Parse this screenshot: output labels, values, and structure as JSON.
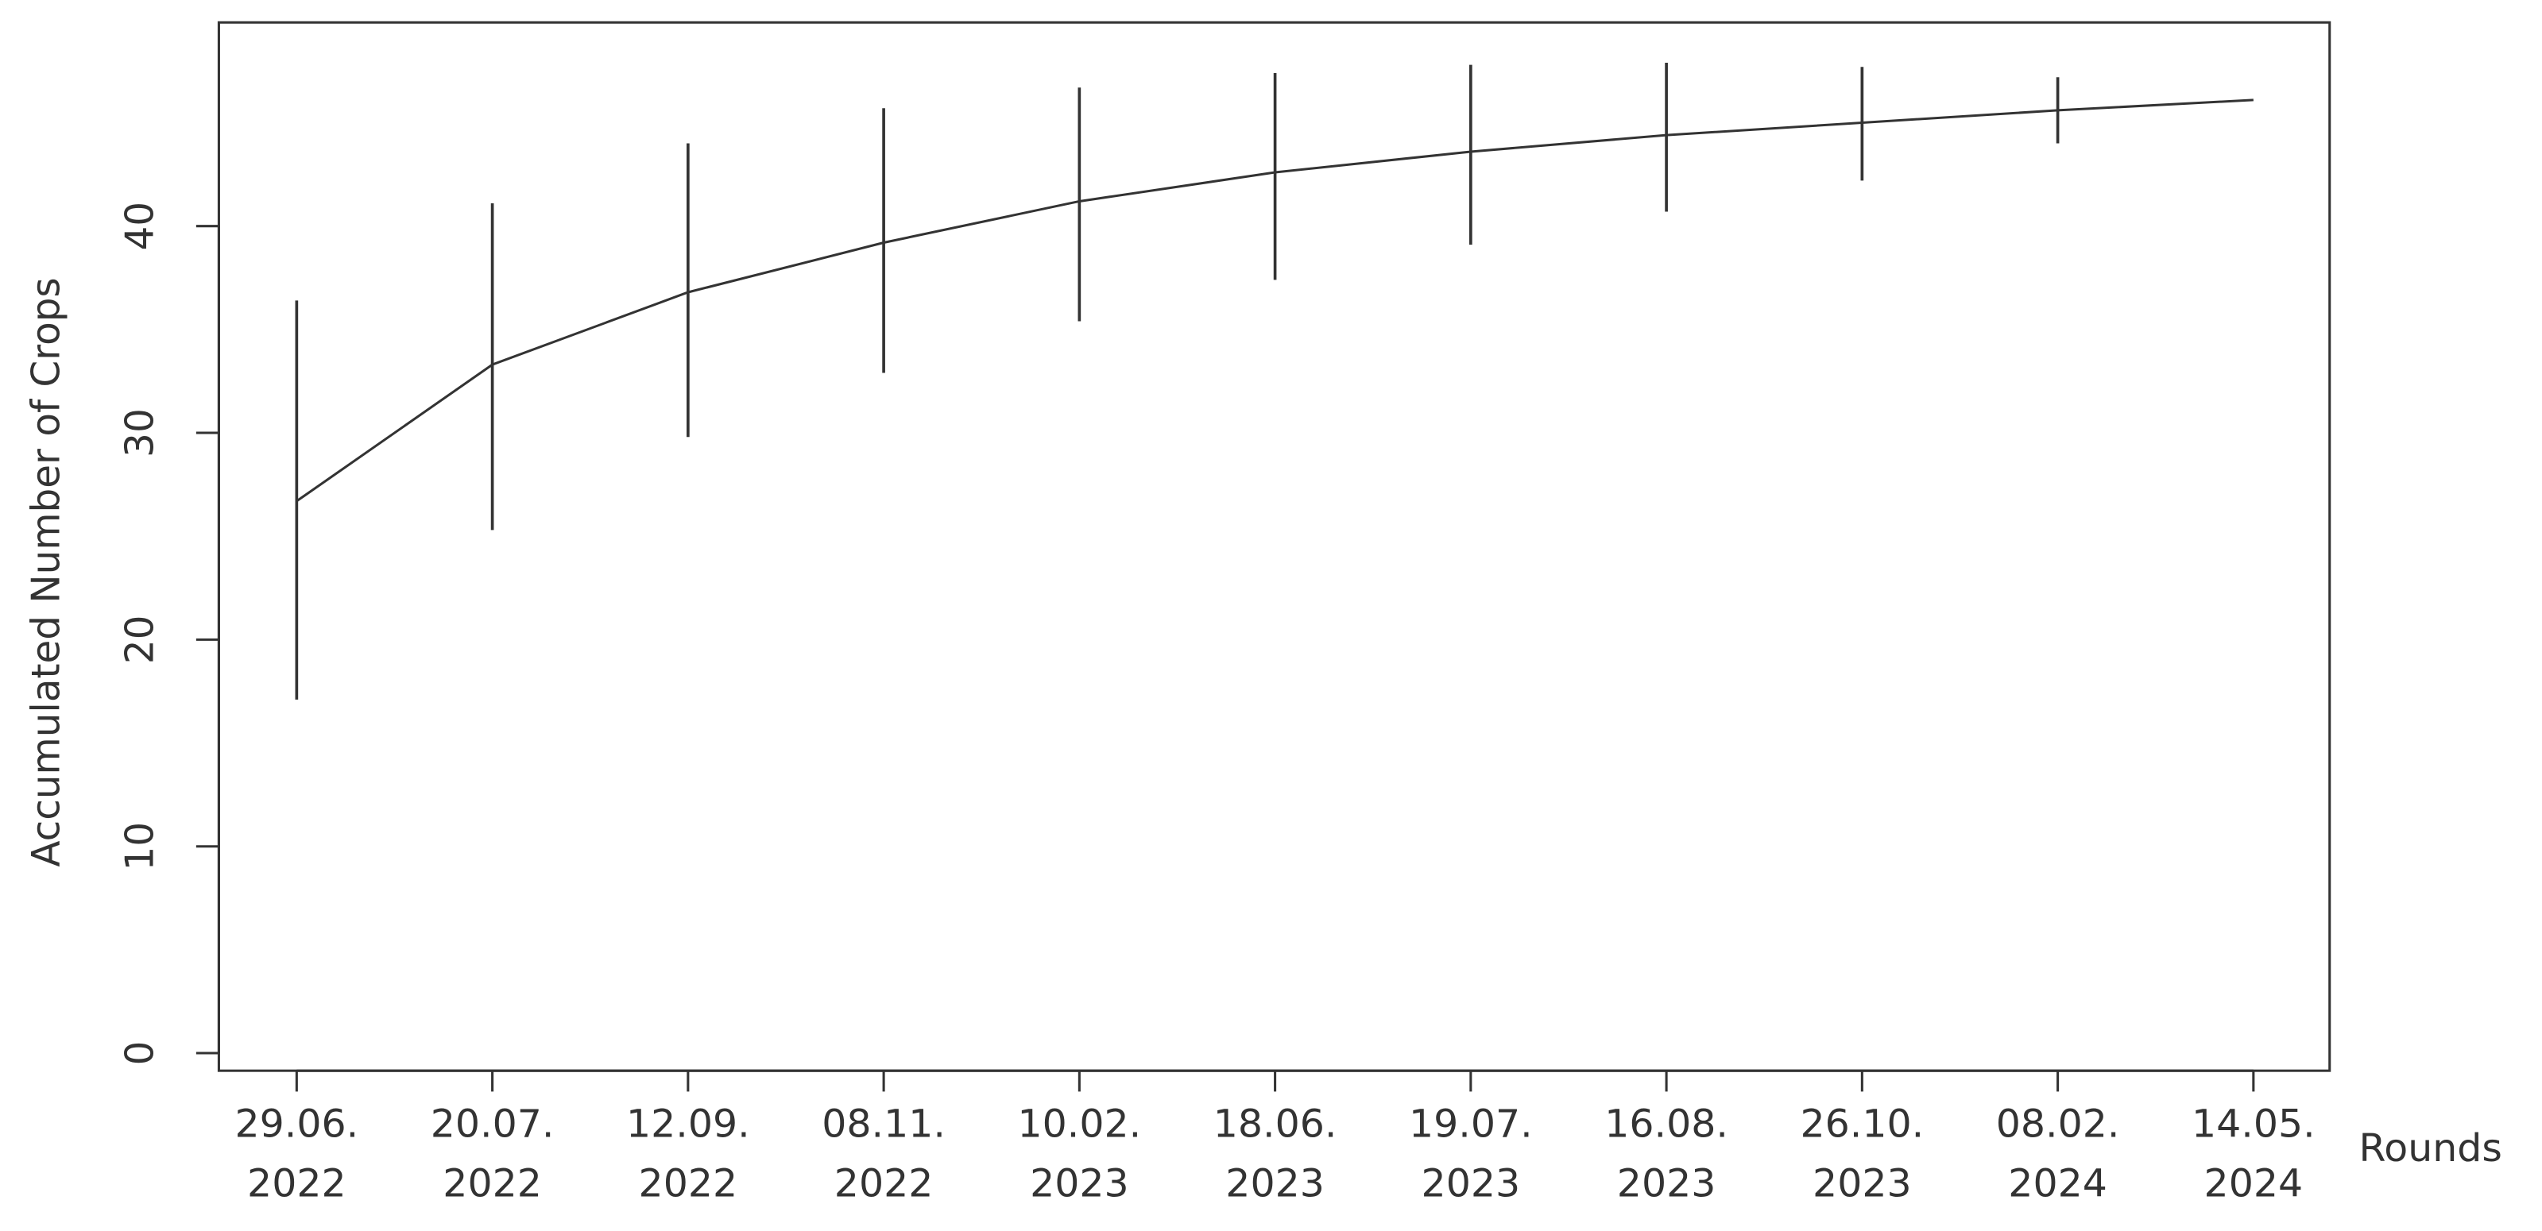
{
  "chart_data": {
    "type": "line",
    "y_label": "Accumulated Number of Crops",
    "x_label": "Rounds",
    "categories": [
      "29.06.\n2022",
      "20.07.\n2022",
      "12.09.\n2022",
      "08.11.\n2022",
      "10.02.\n2023",
      "18.06.\n2023",
      "19.07.\n2023",
      "16.08.\n2023",
      "26.10.\n2023",
      "08.02.\n2024",
      "14.05.\n2024"
    ],
    "values": [
      26.7,
      33.3,
      36.8,
      39.2,
      41.2,
      42.6,
      43.6,
      44.4,
      45.0,
      45.6,
      46.1
    ],
    "lower": [
      17.1,
      25.3,
      29.8,
      32.9,
      35.4,
      37.4,
      39.1,
      40.7,
      42.2,
      44.0,
      null
    ],
    "upper": [
      36.4,
      41.1,
      44.0,
      45.7,
      46.7,
      47.4,
      47.8,
      47.9,
      47.7,
      47.2,
      null
    ],
    "color": "#333333",
    "ylim": [
      -0.85,
      49.85
    ],
    "yticks": [
      0,
      10,
      20,
      30,
      40
    ]
  }
}
